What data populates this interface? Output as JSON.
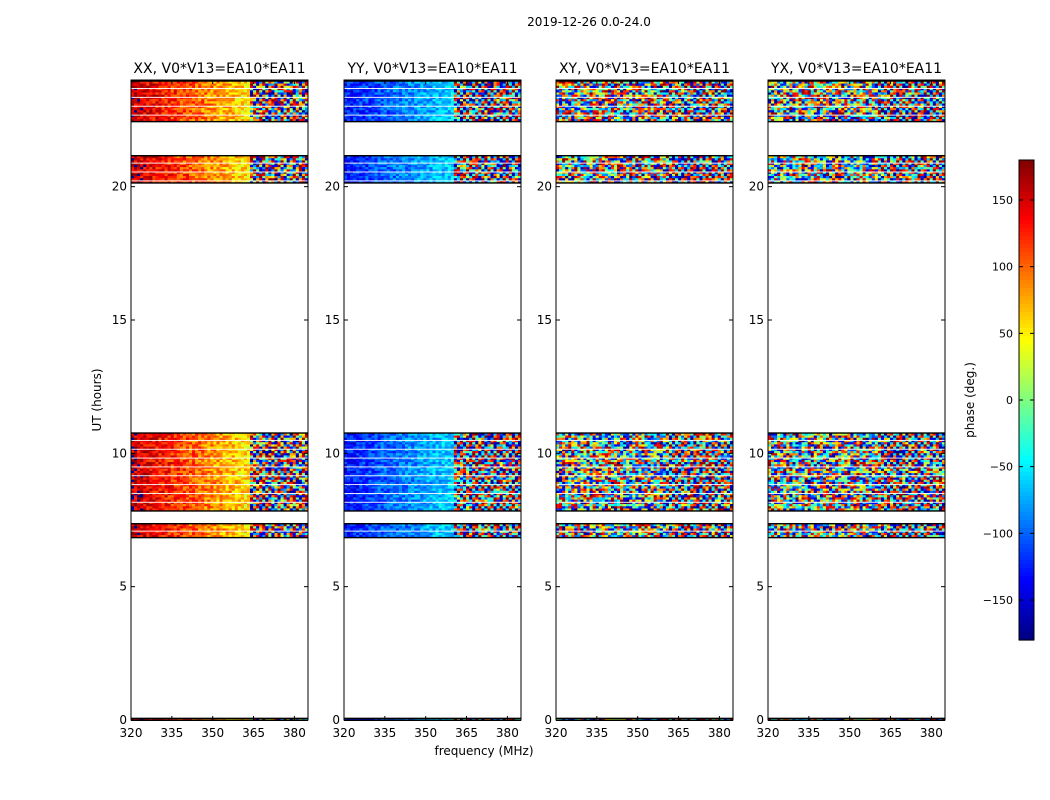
{
  "chart_data": {
    "type": "heatmap",
    "suptitle": "2019-12-26 0.0-24.0",
    "xlabel": "frequency (MHz)",
    "ylabel": "UT (hours)",
    "xlim": [
      320,
      385
    ],
    "ylim": [
      0,
      24
    ],
    "xticks": [
      320,
      335,
      350,
      365,
      380
    ],
    "yticks": [
      0,
      5,
      10,
      15,
      20
    ],
    "panels": [
      {
        "title": "XX, V0*V13=EA10*EA11",
        "mean_phase": 160,
        "phase_slope": -2.5,
        "phase_noise": 35,
        "fringe_from_mhz": 364
      },
      {
        "title": "YY, V0*V13=EA10*EA11",
        "mean_phase": -130,
        "phase_slope": 1.8,
        "phase_noise": 30,
        "fringe_from_mhz": 360
      },
      {
        "title": "XY, V0*V13=EA10*EA11",
        "mean_phase": 0,
        "phase_slope": 0,
        "phase_noise": 180,
        "fringe_from_mhz": 360
      },
      {
        "title": "YX, V0*V13=EA10*EA11",
        "mean_phase": 0,
        "phase_slope": 0,
        "phase_noise": 180,
        "fringe_from_mhz": 360
      }
    ],
    "data_time_ranges_hours": [
      [
        0.0,
        0.05
      ],
      [
        6.85,
        7.35
      ],
      [
        7.85,
        10.75
      ],
      [
        20.15,
        21.15
      ],
      [
        22.45,
        23.95
      ]
    ],
    "colorbar": {
      "label": "phase (deg.)",
      "range": [
        -180,
        180
      ],
      "ticks": [
        -150,
        -100,
        -50,
        0,
        50,
        100,
        150
      ],
      "colormap": "jet"
    },
    "grid": false
  }
}
